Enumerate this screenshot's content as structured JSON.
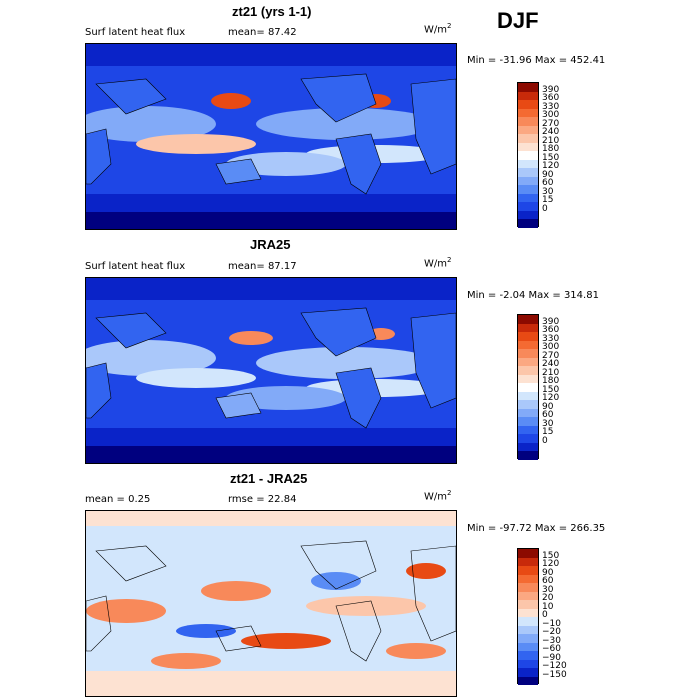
{
  "season": "DJF",
  "unit_base": "W/m",
  "unit_exp": "2",
  "panels": [
    {
      "title": "zt21 (yrs 1-1)",
      "left_label": "Surf latent heat flux",
      "stat_label": "mean=",
      "stat_value": "87.42",
      "minmax": "Min = -31.96  Max = 452.41",
      "palette": [
        "#00007f",
        "#0a23c8",
        "#1e46e6",
        "#3264f0",
        "#5a8cf5",
        "#82aaf8",
        "#aac8fa",
        "#d2e6fc",
        "#ffffff",
        "#fde2d2",
        "#fcc6aa",
        "#fba882",
        "#f8895a",
        "#f46a32",
        "#e84a14",
        "#c82a0a",
        "#8c0a00"
      ],
      "ticks": [
        "390",
        "360",
        "330",
        "300",
        "270",
        "240",
        "210",
        "180",
        "150",
        "120",
        "90",
        "60",
        "30",
        "15",
        "0"
      ],
      "kind": "abs"
    },
    {
      "title": "JRA25",
      "left_label": "Surf latent heat flux",
      "stat_label": "mean=",
      "stat_value": "87.17",
      "minmax": "Min =  -2.04  Max = 314.81",
      "palette": [
        "#00007f",
        "#0a23c8",
        "#1e46e6",
        "#3264f0",
        "#5a8cf5",
        "#82aaf8",
        "#aac8fa",
        "#d2e6fc",
        "#ffffff",
        "#fde2d2",
        "#fcc6aa",
        "#fba882",
        "#f8895a",
        "#f46a32",
        "#e84a14",
        "#c82a0a",
        "#8c0a00"
      ],
      "ticks": [
        "390",
        "360",
        "330",
        "300",
        "270",
        "240",
        "210",
        "180",
        "150",
        "120",
        "90",
        "60",
        "30",
        "15",
        "0"
      ],
      "kind": "abs"
    },
    {
      "title": "zt21 - JRA25",
      "left_label": "mean =     0.25",
      "stat_label": "rmse =",
      "stat_value": "22.84",
      "minmax": "Min = -97.72  Max = 266.35",
      "palette": [
        "#00007f",
        "#0a23c8",
        "#1e46e6",
        "#3264f0",
        "#5a8cf5",
        "#82aaf8",
        "#aac8fa",
        "#d2e6fc",
        "#fde2d2",
        "#fcc6aa",
        "#fba882",
        "#f8895a",
        "#f46a32",
        "#e84a14",
        "#c82a0a",
        "#8c0a00"
      ],
      "ticks": [
        "150",
        "120",
        "90",
        "60",
        "30",
        "20",
        "10",
        "0",
        "−10",
        "−20",
        "−30",
        "−60",
        "−90",
        "−120",
        "−150"
      ],
      "kind": "diff"
    }
  ]
}
